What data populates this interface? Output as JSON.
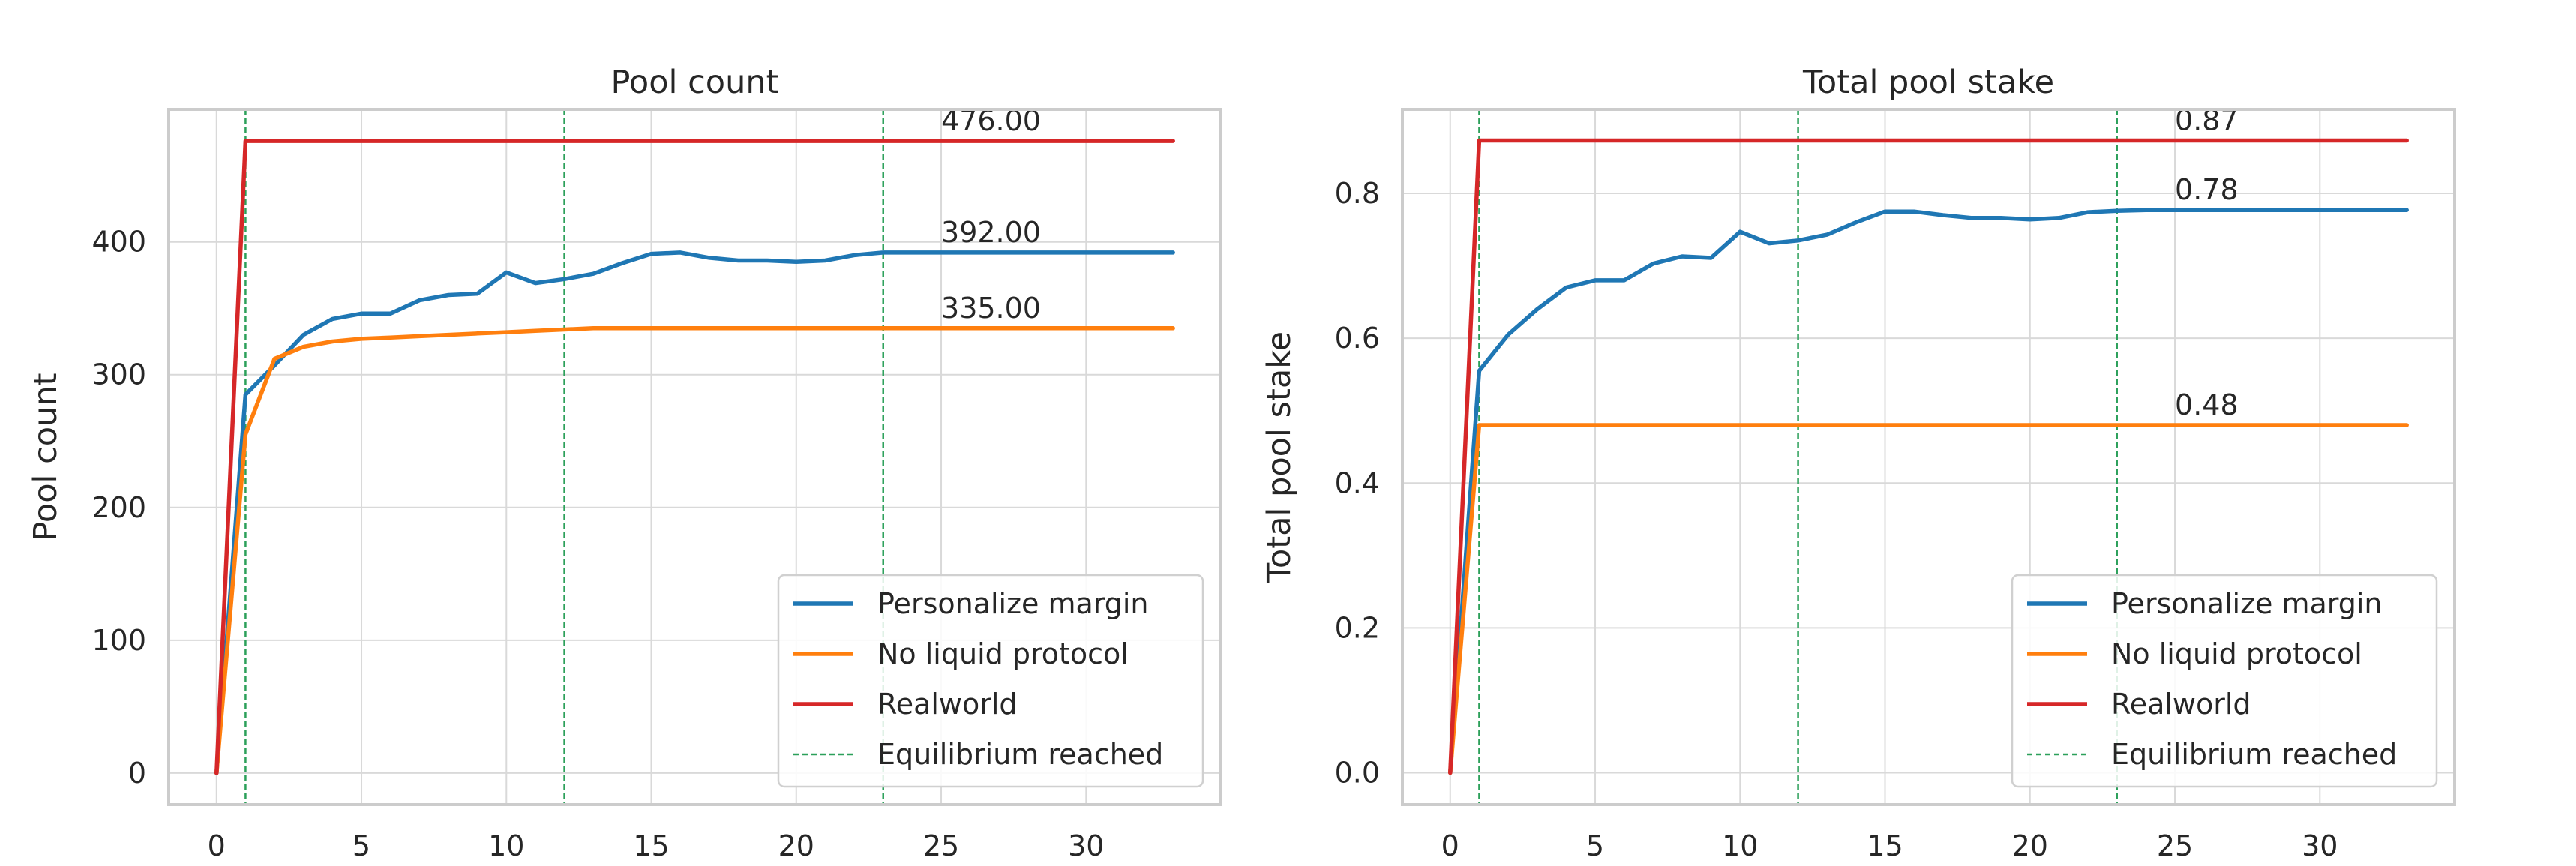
{
  "chart_data": [
    {
      "type": "line",
      "title": "Pool count",
      "xlabel": "",
      "ylabel": "Pool count",
      "xlim": [
        -1.65,
        34.65
      ],
      "ylim": [
        -23.8,
        499.8
      ],
      "xticks": [
        0,
        5,
        10,
        15,
        20,
        25,
        30
      ],
      "yticks": [
        0,
        100,
        200,
        300,
        400
      ],
      "ytick_labels": [
        "0",
        "100",
        "200",
        "300",
        "400"
      ],
      "grid": true,
      "legend_position": "lower-right",
      "x": [
        0,
        1,
        2,
        3,
        4,
        5,
        6,
        7,
        8,
        9,
        10,
        11,
        12,
        13,
        14,
        15,
        16,
        17,
        18,
        19,
        20,
        21,
        22,
        23,
        24,
        25,
        26,
        27,
        28,
        29,
        30,
        31,
        32,
        33
      ],
      "series": [
        {
          "name": "Personalize margin",
          "color": "#1f77b4",
          "values": [
            0,
            285,
            307,
            330,
            342,
            346,
            346,
            356,
            360,
            361,
            377,
            369,
            372,
            376,
            384,
            391,
            392,
            388,
            386,
            386,
            385,
            386,
            390,
            392,
            392,
            392,
            392,
            392,
            392,
            392,
            392,
            392,
            392,
            392
          ]
        },
        {
          "name": "No liquid protocol",
          "color": "#ff7f0e",
          "values": [
            0,
            255,
            312,
            321,
            325,
            327,
            328,
            329,
            330,
            331,
            332,
            333,
            334,
            335,
            335,
            335,
            335,
            335,
            335,
            335,
            335,
            335,
            335,
            335,
            335,
            335,
            335,
            335,
            335,
            335,
            335,
            335,
            335,
            335
          ]
        },
        {
          "name": "Realworld",
          "color": "#d62728",
          "values": [
            0,
            476,
            476,
            476,
            476,
            476,
            476,
            476,
            476,
            476,
            476,
            476,
            476,
            476,
            476,
            476,
            476,
            476,
            476,
            476,
            476,
            476,
            476,
            476,
            476,
            476,
            476,
            476,
            476,
            476,
            476,
            476,
            476,
            476
          ]
        }
      ],
      "equilibrium": {
        "name": "Equilibrium reached",
        "color": "#2ca05a",
        "x": [
          1,
          12,
          23
        ]
      },
      "annotations": [
        {
          "text": "476.00",
          "x": 25,
          "y": 476
        },
        {
          "text": "392.00",
          "x": 25,
          "y": 392
        },
        {
          "text": "335.00",
          "x": 25,
          "y": 335
        }
      ]
    },
    {
      "type": "line",
      "title": "Total pool stake",
      "xlabel": "",
      "ylabel": "Total pool stake",
      "xlim": [
        -1.65,
        34.65
      ],
      "ylim": [
        -0.044,
        0.916
      ],
      "xticks": [
        0,
        5,
        10,
        15,
        20,
        25,
        30
      ],
      "yticks": [
        0.0,
        0.2,
        0.4,
        0.6,
        0.8
      ],
      "ytick_labels": [
        "0.0",
        "0.2",
        "0.4",
        "0.6",
        "0.8"
      ],
      "grid": true,
      "legend_position": "lower-right",
      "x": [
        0,
        1,
        2,
        3,
        4,
        5,
        6,
        7,
        8,
        9,
        10,
        11,
        12,
        13,
        14,
        15,
        16,
        17,
        18,
        19,
        20,
        21,
        22,
        23,
        24,
        25,
        26,
        27,
        28,
        29,
        30,
        31,
        32,
        33
      ],
      "series": [
        {
          "name": "Personalize margin",
          "color": "#1f77b4",
          "values": [
            0,
            0.555,
            0.605,
            0.64,
            0.67,
            0.68,
            0.68,
            0.703,
            0.713,
            0.711,
            0.747,
            0.731,
            0.735,
            0.743,
            0.76,
            0.775,
            0.775,
            0.77,
            0.766,
            0.766,
            0.764,
            0.766,
            0.774,
            0.776,
            0.777,
            0.777,
            0.777,
            0.777,
            0.777,
            0.777,
            0.777,
            0.777,
            0.777,
            0.777
          ]
        },
        {
          "name": "No liquid protocol",
          "color": "#ff7f0e",
          "values": [
            0,
            0.48,
            0.48,
            0.48,
            0.48,
            0.48,
            0.48,
            0.48,
            0.48,
            0.48,
            0.48,
            0.48,
            0.48,
            0.48,
            0.48,
            0.48,
            0.48,
            0.48,
            0.48,
            0.48,
            0.48,
            0.48,
            0.48,
            0.48,
            0.48,
            0.48,
            0.48,
            0.48,
            0.48,
            0.48,
            0.48,
            0.48,
            0.48,
            0.48
          ]
        },
        {
          "name": "Realworld",
          "color": "#d62728",
          "values": [
            0,
            0.873,
            0.873,
            0.873,
            0.873,
            0.873,
            0.873,
            0.873,
            0.873,
            0.873,
            0.873,
            0.873,
            0.873,
            0.873,
            0.873,
            0.873,
            0.873,
            0.873,
            0.873,
            0.873,
            0.873,
            0.873,
            0.873,
            0.873,
            0.873,
            0.873,
            0.873,
            0.873,
            0.873,
            0.873,
            0.873,
            0.873,
            0.873,
            0.873
          ]
        }
      ],
      "equilibrium": {
        "name": "Equilibrium reached",
        "color": "#2ca05a",
        "x": [
          1,
          12,
          23
        ]
      },
      "annotations": [
        {
          "text": "0.87",
          "x": 25,
          "y": 0.873
        },
        {
          "text": "0.78",
          "x": 25,
          "y": 0.777
        },
        {
          "text": "0.48",
          "x": 25,
          "y": 0.48
        }
      ]
    }
  ]
}
